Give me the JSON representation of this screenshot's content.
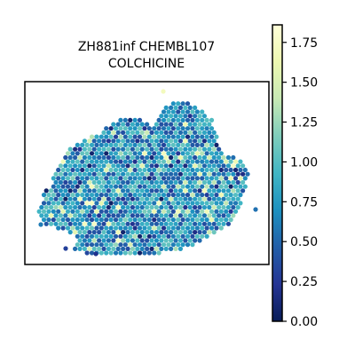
{
  "chart_data": {
    "type": "scatter",
    "title_line1": "ZH881inf CHEMBL107",
    "title_line2": "COLCHICINE",
    "xlabel": "",
    "ylabel": "",
    "axis_ticks_visible": false,
    "colormap": "YlGnBu_r",
    "colorbar": {
      "min": 0.0,
      "max": 1.86,
      "ticks": [
        {
          "value": 0.0,
          "label": "0.00"
        },
        {
          "value": 0.25,
          "label": "0.25"
        },
        {
          "value": 0.5,
          "label": "0.50"
        },
        {
          "value": 0.75,
          "label": "0.75"
        },
        {
          "value": 1.0,
          "label": "1.00"
        },
        {
          "value": 1.25,
          "label": "1.25"
        },
        {
          "value": 1.5,
          "label": "1.50"
        },
        {
          "value": 1.75,
          "label": "1.75"
        }
      ],
      "colors": [
        "#081d58",
        "#253494",
        "#225ea8",
        "#1d91c0",
        "#41b6c4",
        "#7fcdbb",
        "#c7e9b4",
        "#edf8b1",
        "#ffffd9"
      ]
    },
    "spots_summary": {
      "value_range": [
        0.0,
        1.86
      ],
      "typical_value": 0.7
    }
  }
}
